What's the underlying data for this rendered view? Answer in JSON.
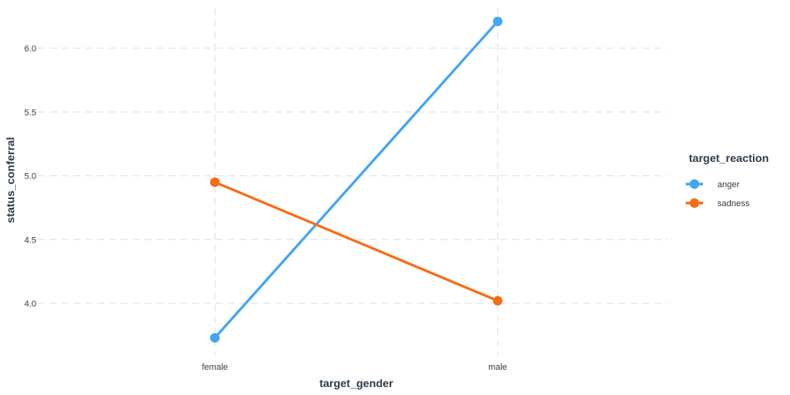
{
  "chart_data": {
    "type": "line",
    "categories": [
      "female",
      "male"
    ],
    "xlabel": "target_gender",
    "ylabel": "status_conferral",
    "ylim": [
      3.6,
      6.3
    ],
    "yticks": [
      4.0,
      4.5,
      5.0,
      5.5,
      6.0
    ],
    "ytick_labels": [
      "4.0",
      "4.5",
      "5.0",
      "5.5",
      "6.0"
    ],
    "grid": true,
    "legend": {
      "title": "target_reaction",
      "placement": "right"
    },
    "series": [
      {
        "name": "anger",
        "color": "#42a5f5",
        "values": [
          3.73,
          6.21
        ]
      },
      {
        "name": "sadness",
        "color": "#f86c14",
        "values": [
          4.95,
          4.02
        ]
      }
    ]
  }
}
